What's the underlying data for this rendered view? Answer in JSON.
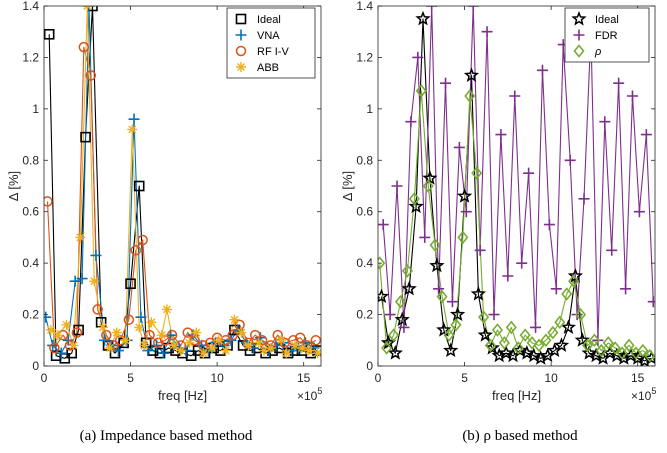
{
  "chart_data": [
    {
      "type": "line",
      "caption": "(a) Impedance based method",
      "xlabel": "freq [Hz]",
      "ylabel": "Δ [%]",
      "x_exponent_label": "×10",
      "x_exponent": "5",
      "xlim": [
        0,
        16
      ],
      "ylim": [
        0,
        1.4
      ],
      "xticks": [
        "0",
        "5",
        "10",
        "15"
      ],
      "yticks": [
        "0",
        "0.2",
        "0.4",
        "0.6",
        "0.8",
        "1",
        "1.2",
        "1.4"
      ],
      "legend_position": "top-right",
      "series": [
        {
          "name": "Ideal",
          "color": "#000000",
          "marker": "square",
          "x": [
            0.3,
            0.7,
            1.2,
            1.6,
            2.0,
            2.4,
            2.8,
            3.3,
            3.7,
            4.1,
            4.6,
            5.0,
            5.5,
            5.9,
            6.3,
            6.7,
            7.2,
            7.6,
            8.0,
            8.5,
            8.9,
            9.3,
            9.8,
            10.2,
            10.6,
            11.0,
            11.5,
            11.9,
            12.3,
            12.8,
            13.2,
            13.6,
            14.1,
            14.5,
            14.9,
            15.4,
            15.8
          ],
          "y": [
            1.29,
            0.04,
            0.03,
            0.05,
            0.14,
            0.89,
            1.4,
            0.17,
            0.08,
            0.05,
            0.09,
            0.32,
            0.7,
            0.09,
            0.06,
            0.05,
            0.07,
            0.06,
            0.05,
            0.04,
            0.06,
            0.05,
            0.07,
            0.06,
            0.08,
            0.14,
            0.08,
            0.06,
            0.07,
            0.05,
            0.06,
            0.07,
            0.05,
            0.06,
            0.06,
            0.05,
            0.06
          ]
        },
        {
          "name": "VNA",
          "color": "#0072BD",
          "marker": "plus",
          "x": [
            0.1,
            0.5,
            1.0,
            1.4,
            1.8,
            2.2,
            2.6,
            3.0,
            3.5,
            3.9,
            4.3,
            4.8,
            5.2,
            5.6,
            6.0,
            6.5,
            6.9,
            7.3,
            7.8,
            8.2,
            8.6,
            9.1,
            9.5,
            9.9,
            10.4,
            10.8,
            11.2,
            11.7,
            12.1,
            12.5,
            13.0,
            13.4,
            13.8,
            14.3,
            14.7,
            15.1,
            15.6
          ],
          "y": [
            0.19,
            0.08,
            0.05,
            0.1,
            0.33,
            0.34,
            1.4,
            0.43,
            0.1,
            0.08,
            0.06,
            0.1,
            0.96,
            0.19,
            0.06,
            0.08,
            0.05,
            0.12,
            0.07,
            0.06,
            0.12,
            0.08,
            0.06,
            0.09,
            0.08,
            0.1,
            0.14,
            0.09,
            0.07,
            0.11,
            0.06,
            0.08,
            0.09,
            0.06,
            0.07,
            0.09,
            0.07
          ]
        },
        {
          "name": "RF I-V",
          "color": "#D95319",
          "marker": "circle",
          "x": [
            0.2,
            0.6,
            1.1,
            1.5,
            1.9,
            2.3,
            2.7,
            3.1,
            3.6,
            4.0,
            4.4,
            4.9,
            5.3,
            5.7,
            6.1,
            6.6,
            7.0,
            7.4,
            7.9,
            8.3,
            8.7,
            9.2,
            9.6,
            10.0,
            10.5,
            10.9,
            11.3,
            11.8,
            12.2,
            12.6,
            13.1,
            13.5,
            13.9,
            14.4,
            14.8,
            15.2,
            15.7
          ],
          "y": [
            0.64,
            0.07,
            0.12,
            0.08,
            0.13,
            1.24,
            1.13,
            0.22,
            0.12,
            0.08,
            0.1,
            0.18,
            0.45,
            0.49,
            0.12,
            0.09,
            0.1,
            0.12,
            0.08,
            0.13,
            0.1,
            0.08,
            0.09,
            0.11,
            0.1,
            0.12,
            0.16,
            0.09,
            0.12,
            0.1,
            0.08,
            0.12,
            0.09,
            0.1,
            0.11,
            0.08,
            0.1
          ]
        },
        {
          "name": "ABB",
          "color": "#EDB120",
          "marker": "asterisk",
          "x": [
            0.4,
            0.8,
            1.3,
            1.7,
            2.1,
            2.5,
            2.9,
            3.4,
            3.8,
            4.2,
            4.7,
            5.1,
            5.5,
            5.8,
            6.2,
            6.8,
            7.1,
            7.5,
            7.9,
            8.4,
            8.8,
            9.2,
            9.7,
            10.1,
            10.5,
            11.0,
            11.4,
            11.8,
            12.4,
            12.7,
            13.1,
            13.7,
            14.0,
            14.5,
            14.9,
            15.3,
            15.8
          ],
          "y": [
            0.14,
            0.12,
            0.16,
            0.08,
            0.5,
            1.4,
            0.33,
            0.15,
            0.07,
            0.13,
            0.1,
            0.92,
            0.15,
            0.08,
            0.17,
            0.12,
            0.22,
            0.08,
            0.06,
            0.09,
            0.13,
            0.05,
            0.07,
            0.1,
            0.06,
            0.18,
            0.13,
            0.08,
            0.09,
            0.06,
            0.07,
            0.1,
            0.05,
            0.08,
            0.07,
            0.06,
            0.05
          ]
        }
      ]
    },
    {
      "type": "line",
      "caption": "(b) ρ based method",
      "xlabel": "freq [Hz]",
      "ylabel": "Δ [%]",
      "x_exponent_label": "×10",
      "x_exponent": "5",
      "xlim": [
        0,
        16
      ],
      "ylim": [
        0,
        1.4
      ],
      "xticks": [
        "0",
        "5",
        "10",
        "15"
      ],
      "yticks": [
        "0",
        "0.2",
        "0.4",
        "0.6",
        "0.8",
        "1",
        "1.2",
        "1.4"
      ],
      "legend_position": "top-right",
      "series": [
        {
          "name": "Ideal",
          "color": "#000000",
          "marker": "star",
          "x": [
            0.2,
            0.6,
            1.0,
            1.4,
            1.8,
            2.2,
            2.6,
            3.0,
            3.4,
            3.8,
            4.2,
            4.6,
            5.0,
            5.4,
            5.8,
            6.2,
            6.6,
            7.0,
            7.4,
            7.8,
            8.2,
            8.6,
            9.0,
            9.4,
            9.8,
            10.2,
            10.6,
            11.0,
            11.4,
            11.8,
            12.2,
            12.6,
            13.0,
            13.4,
            13.8,
            14.2,
            14.6,
            15.0,
            15.4,
            15.8
          ],
          "y": [
            0.27,
            0.09,
            0.05,
            0.18,
            0.3,
            0.62,
            1.35,
            0.73,
            0.39,
            0.14,
            0.06,
            0.2,
            0.66,
            1.13,
            0.28,
            0.12,
            0.07,
            0.04,
            0.05,
            0.04,
            0.06,
            0.05,
            0.04,
            0.03,
            0.04,
            0.06,
            0.08,
            0.15,
            0.35,
            0.1,
            0.05,
            0.04,
            0.03,
            0.05,
            0.04,
            0.03,
            0.04,
            0.03,
            0.02,
            0.03
          ]
        },
        {
          "name": "FDR",
          "color": "#7E2F8E",
          "marker": "plus",
          "x": [
            0.3,
            0.7,
            1.1,
            1.5,
            1.9,
            2.3,
            2.7,
            3.1,
            3.5,
            3.9,
            4.3,
            4.7,
            5.1,
            5.5,
            5.9,
            6.3,
            6.7,
            7.1,
            7.5,
            7.9,
            8.3,
            8.7,
            9.1,
            9.5,
            9.9,
            10.3,
            10.7,
            11.1,
            11.5,
            11.9,
            12.3,
            12.7,
            13.1,
            13.5,
            13.9,
            14.3,
            14.7,
            15.1,
            15.5,
            15.9
          ],
          "y": [
            0.55,
            0.2,
            0.7,
            0.15,
            0.95,
            1.2,
            0.5,
            1.4,
            0.3,
            1.1,
            0.25,
            0.85,
            0.6,
            1.4,
            0.45,
            1.3,
            0.2,
            0.9,
            0.35,
            1.05,
            0.4,
            0.75,
            0.15,
            1.15,
            0.55,
            0.3,
            1.25,
            0.8,
            0.2,
            0.65,
            1.3,
            0.1,
            0.95,
            0.45,
            1.1,
            0.3,
            1.05,
            0.6,
            0.9,
            0.25
          ]
        },
        {
          "name": "ρ",
          "color": "#77AC30",
          "marker": "diamond",
          "x": [
            0.1,
            0.5,
            0.9,
            1.3,
            1.7,
            2.1,
            2.5,
            2.9,
            3.3,
            3.7,
            4.1,
            4.5,
            4.9,
            5.3,
            5.7,
            6.1,
            6.5,
            6.9,
            7.3,
            7.7,
            8.1,
            8.5,
            8.9,
            9.3,
            9.7,
            10.1,
            10.5,
            10.9,
            11.3,
            11.7,
            12.1,
            12.5,
            12.9,
            13.3,
            13.7,
            14.1,
            14.5,
            14.9,
            15.3,
            15.7
          ],
          "y": [
            0.4,
            0.07,
            0.12,
            0.25,
            0.37,
            0.65,
            1.07,
            0.7,
            0.47,
            0.27,
            0.12,
            0.16,
            0.5,
            1.05,
            0.75,
            0.19,
            0.08,
            0.14,
            0.09,
            0.15,
            0.07,
            0.12,
            0.09,
            0.08,
            0.1,
            0.13,
            0.17,
            0.28,
            0.33,
            0.2,
            0.08,
            0.1,
            0.06,
            0.09,
            0.07,
            0.05,
            0.08,
            0.05,
            0.06,
            0.04
          ]
        }
      ]
    }
  ]
}
